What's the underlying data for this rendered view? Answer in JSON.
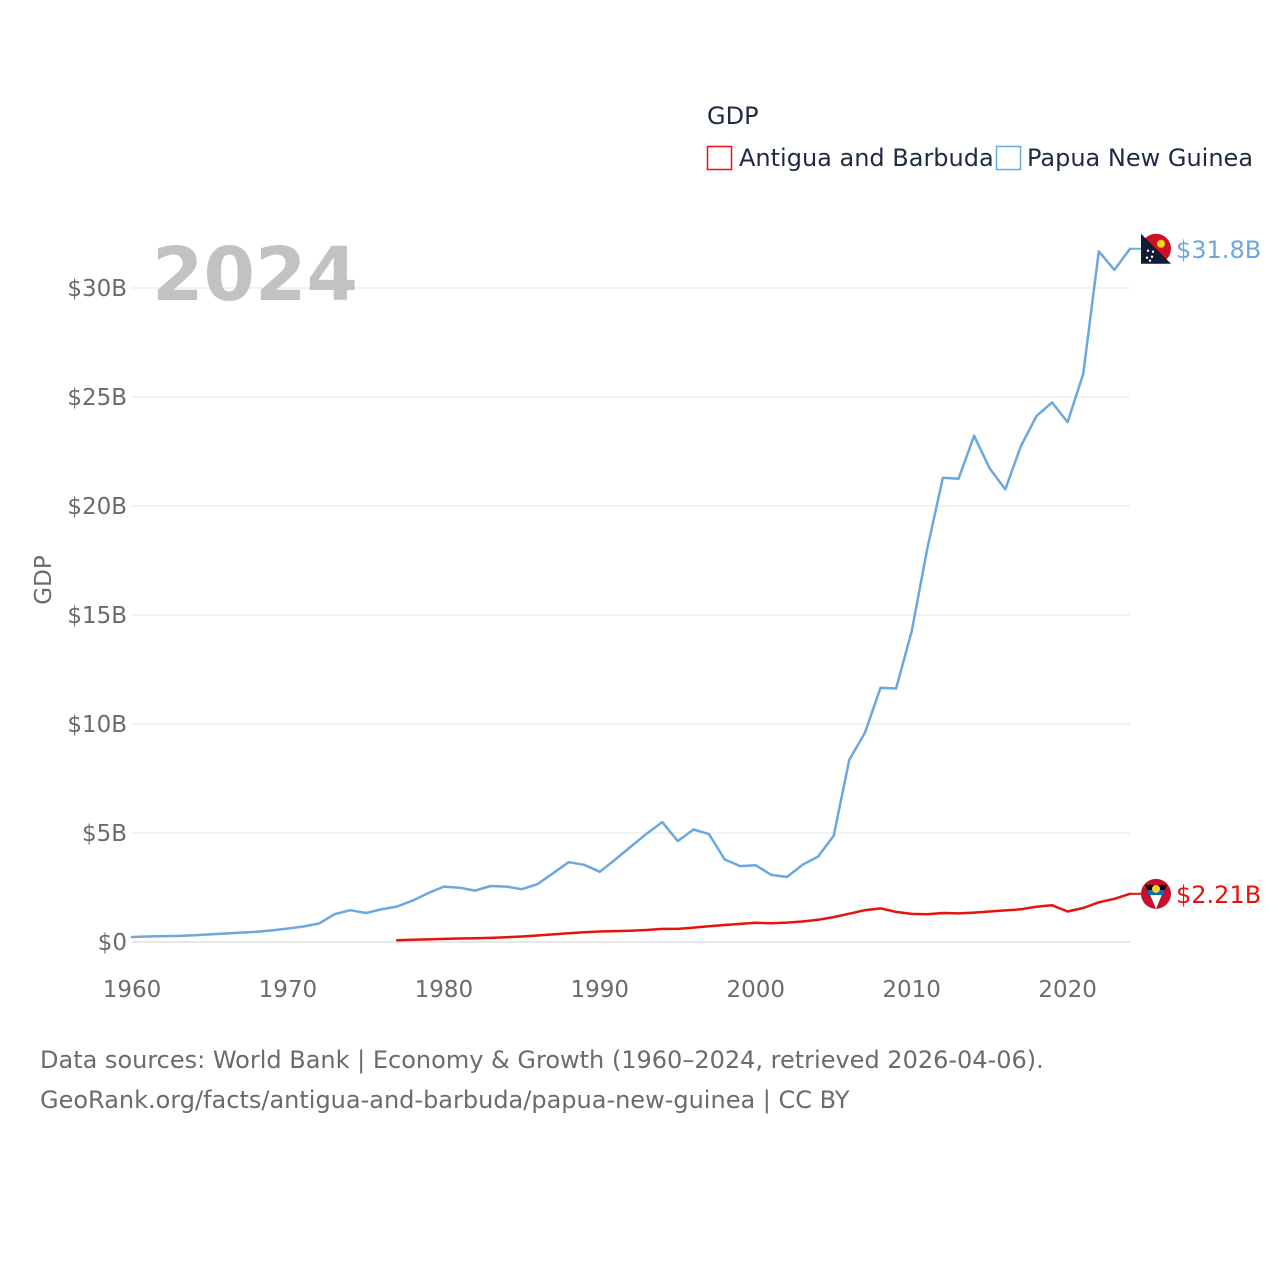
{
  "chart_data": {
    "type": "line",
    "title": "GDP",
    "ylabel": "GDP",
    "year_label": "2024",
    "xlim": [
      1960,
      2024
    ],
    "ylim": [
      0,
      32
    ],
    "x_ticks": [
      "1960",
      "1970",
      "1980",
      "1990",
      "2000",
      "2010",
      "2020"
    ],
    "y_ticks": [
      {
        "value": 0,
        "label": "$0"
      },
      {
        "value": 5,
        "label": "$5B"
      },
      {
        "value": 10,
        "label": "$10B"
      },
      {
        "value": 15,
        "label": "$15B"
      },
      {
        "value": 20,
        "label": "$20B"
      },
      {
        "value": 25,
        "label": "$25B"
      },
      {
        "value": 30,
        "label": "$30B"
      }
    ],
    "series": [
      {
        "name": "Antigua and Barbuda",
        "color": "#e8120c",
        "end_label": "$2.21B",
        "flag_icon": "antigua-and-barbuda-flag-icon",
        "x": [
          1977,
          1978,
          1979,
          1980,
          1981,
          1982,
          1983,
          1984,
          1985,
          1986,
          1987,
          1988,
          1989,
          1990,
          1991,
          1992,
          1993,
          1994,
          1995,
          1996,
          1997,
          1998,
          1999,
          2000,
          2001,
          2002,
          2003,
          2004,
          2005,
          2006,
          2007,
          2008,
          2009,
          2010,
          2011,
          2012,
          2013,
          2014,
          2015,
          2016,
          2017,
          2018,
          2019,
          2020,
          2021,
          2022,
          2023,
          2024
        ],
        "values": [
          0.08,
          0.1,
          0.12,
          0.14,
          0.16,
          0.17,
          0.19,
          0.22,
          0.25,
          0.3,
          0.35,
          0.4,
          0.45,
          0.48,
          0.5,
          0.52,
          0.55,
          0.6,
          0.6,
          0.66,
          0.72,
          0.78,
          0.83,
          0.88,
          0.86,
          0.89,
          0.94,
          1.02,
          1.14,
          1.3,
          1.46,
          1.54,
          1.38,
          1.29,
          1.27,
          1.33,
          1.31,
          1.35,
          1.4,
          1.45,
          1.5,
          1.62,
          1.69,
          1.4,
          1.56,
          1.82,
          1.98,
          2.21
        ]
      },
      {
        "name": "Papua New Guinea",
        "color": "#6aa8e0",
        "end_label": "$31.8B",
        "flag_icon": "papua-new-guinea-flag-icon",
        "x": [
          1960,
          1961,
          1962,
          1963,
          1964,
          1965,
          1966,
          1967,
          1968,
          1969,
          1970,
          1971,
          1972,
          1973,
          1974,
          1975,
          1976,
          1977,
          1978,
          1979,
          1980,
          1981,
          1982,
          1983,
          1984,
          1985,
          1986,
          1987,
          1988,
          1989,
          1990,
          1991,
          1992,
          1993,
          1994,
          1995,
          1996,
          1997,
          1998,
          1999,
          2000,
          2001,
          2002,
          2003,
          2004,
          2005,
          2006,
          2007,
          2008,
          2009,
          2010,
          2011,
          2012,
          2013,
          2014,
          2015,
          2016,
          2017,
          2018,
          2019,
          2020,
          2021,
          2022,
          2023,
          2024
        ],
        "values": [
          0.23,
          0.25,
          0.27,
          0.28,
          0.31,
          0.35,
          0.39,
          0.43,
          0.47,
          0.53,
          0.62,
          0.71,
          0.85,
          1.28,
          1.46,
          1.33,
          1.5,
          1.63,
          1.9,
          2.25,
          2.54,
          2.49,
          2.36,
          2.57,
          2.54,
          2.42,
          2.65,
          3.15,
          3.66,
          3.54,
          3.22,
          3.79,
          4.38,
          4.97,
          5.5,
          4.63,
          5.16,
          4.95,
          3.79,
          3.48,
          3.52,
          3.08,
          2.98,
          3.54,
          3.92,
          4.87,
          8.36,
          9.59,
          11.66,
          11.63,
          14.25,
          18.05,
          21.3,
          21.25,
          23.22,
          21.72,
          20.76,
          22.74,
          24.12,
          24.75,
          23.85,
          26.05,
          31.68,
          30.83,
          31.8
        ]
      }
    ]
  },
  "footer": {
    "line1": "Data sources: World Bank | Economy & Growth (1960–2024, retrieved 2026-04-06).",
    "line2": "GeoRank.org/facts/antigua-and-barbuda/papua-new-guinea | CC BY"
  }
}
